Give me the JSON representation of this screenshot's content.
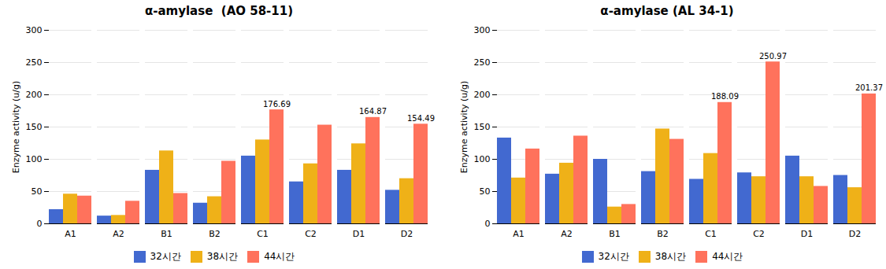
{
  "chart_data": [
    {
      "type": "bar",
      "title": "α-amylase  (AO 58-11)",
      "categories": [
        "A1",
        "A2",
        "B1",
        "B2",
        "C1",
        "C2",
        "D1",
        "D2"
      ],
      "series": [
        {
          "name": "32시간",
          "values": [
            22,
            12,
            83,
            32,
            105,
            65,
            83,
            52
          ]
        },
        {
          "name": "38시간",
          "values": [
            46,
            13,
            113,
            42,
            130,
            93,
            124,
            70
          ]
        },
        {
          "name": "44시간",
          "values": [
            43,
            35,
            47,
            97,
            176.69,
            153,
            164.87,
            154.49
          ]
        }
      ],
      "annotations": [
        {
          "text": "176.69",
          "category": "C1",
          "series": "44시간",
          "value": 176.69
        },
        {
          "text": "164.87",
          "category": "D1",
          "series": "44시간",
          "value": 164.87
        },
        {
          "text": "154.49",
          "category": "D2",
          "series": "44시간",
          "value": 154.49
        }
      ],
      "ylabel": "Enzyme activity (u/g)",
      "ylim": [
        0,
        300
      ],
      "yticks": [
        0,
        50,
        100,
        150,
        200,
        250,
        300
      ],
      "grid": true,
      "legend": "bottom"
    },
    {
      "type": "bar",
      "title": "α-amylase (AL 34-1)",
      "categories": [
        "A1",
        "A2",
        "B1",
        "B2",
        "C1",
        "C2",
        "D1",
        "D2"
      ],
      "series": [
        {
          "name": "32시간",
          "values": [
            133,
            77,
            100,
            81,
            69,
            79,
            105,
            75
          ]
        },
        {
          "name": "38시간",
          "values": [
            71,
            94,
            26,
            147,
            109,
            73,
            73,
            56
          ]
        },
        {
          "name": "44시간",
          "values": [
            116,
            136,
            30,
            131,
            188.09,
            250.97,
            58,
            201.37
          ]
        }
      ],
      "annotations": [
        {
          "text": "188.09",
          "category": "C1",
          "series": "44시간",
          "value": 188.09
        },
        {
          "text": "250.97",
          "category": "C2",
          "series": "44시간",
          "value": 250.97
        },
        {
          "text": "201.37",
          "category": "D2",
          "series": "44시간",
          "value": 201.37
        }
      ],
      "ylabel": "Enzyme activity (u/g)",
      "ylim": [
        0,
        300
      ],
      "yticks": [
        0,
        50,
        100,
        150,
        200,
        250,
        300
      ],
      "grid": true,
      "legend": "bottom"
    }
  ]
}
